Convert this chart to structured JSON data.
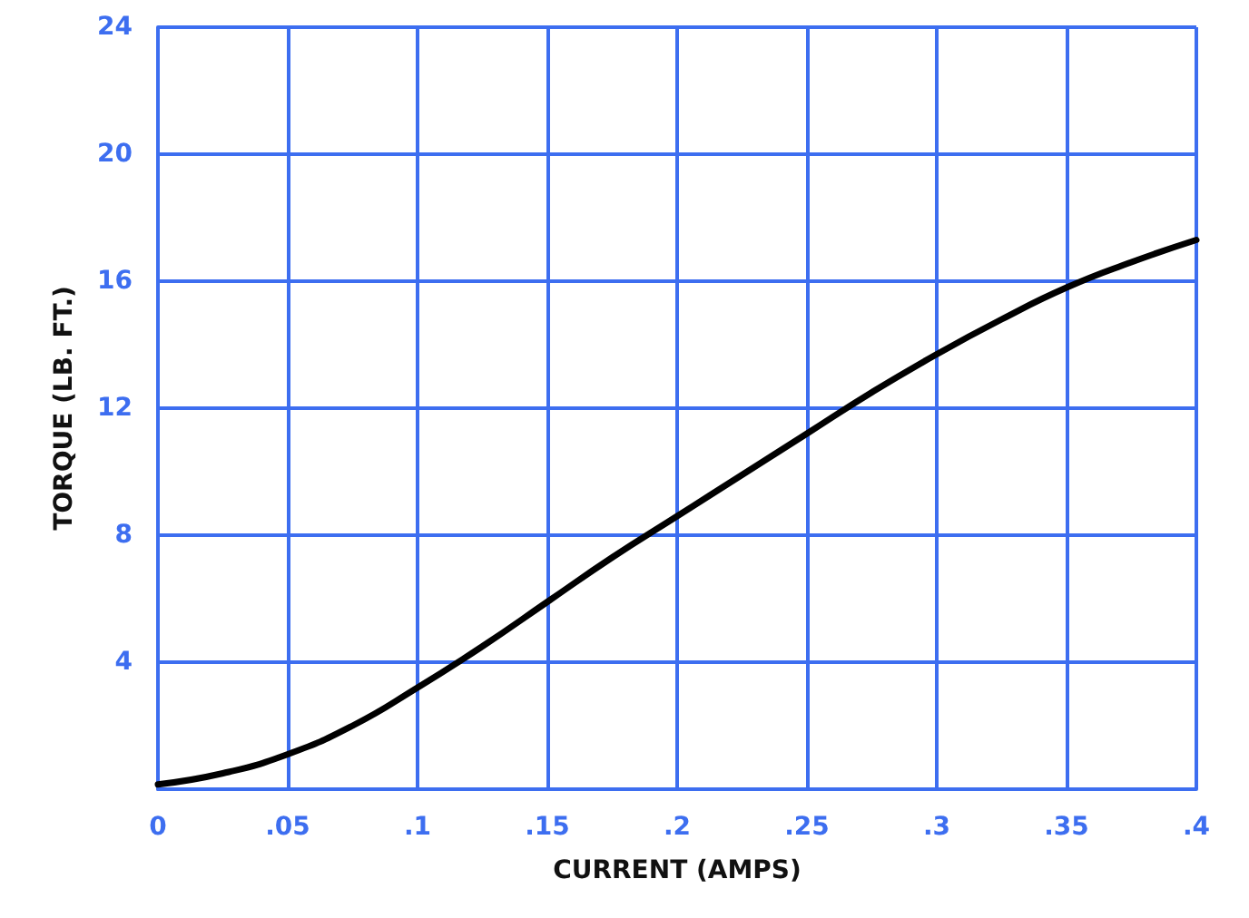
{
  "chart_data": {
    "type": "line",
    "xlabel": "CURRENT (AMPS)",
    "ylabel": "TORQUE (LB. FT.)",
    "x": [
      0,
      0.025,
      0.05,
      0.075,
      0.1,
      0.125,
      0.15,
      0.175,
      0.2,
      0.225,
      0.25,
      0.275,
      0.3,
      0.325,
      0.35,
      0.375,
      0.4
    ],
    "series": [
      {
        "color": "#000000",
        "values": [
          0.15,
          0.5,
          1.1,
          2.0,
          3.2,
          4.5,
          5.9,
          7.3,
          8.6,
          9.9,
          11.2,
          12.5,
          13.7,
          14.8,
          15.8,
          16.6,
          17.3
        ]
      }
    ],
    "xlim": [
      0,
      0.4
    ],
    "xticks": [
      {
        "value": 0,
        "label": "0"
      },
      {
        "value": 0.05,
        "label": ".05"
      },
      {
        "value": 0.1,
        "label": ".1"
      },
      {
        "value": 0.15,
        "label": ".15"
      },
      {
        "value": 0.2,
        "label": ".2"
      },
      {
        "value": 0.25,
        "label": ".25"
      },
      {
        "value": 0.3,
        "label": ".3"
      },
      {
        "value": 0.35,
        "label": ".35"
      },
      {
        "value": 0.4,
        "label": ".4"
      }
    ],
    "ylim": [
      0,
      24
    ],
    "yticks": [
      {
        "value": 0,
        "label": null
      },
      4,
      8,
      12,
      16,
      20,
      24
    ],
    "grid": true,
    "marker": "none",
    "line_style": "solid"
  }
}
